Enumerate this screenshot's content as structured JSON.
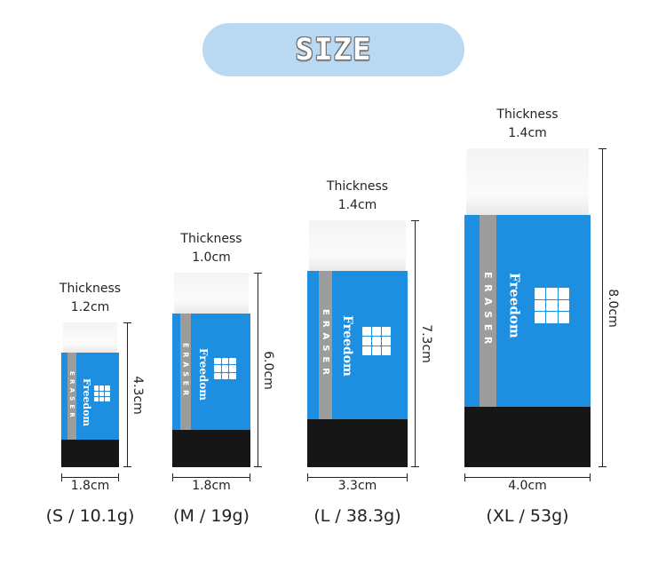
{
  "title": "SIZE",
  "brand": "Freedom",
  "stripe_text": "ERASER",
  "colors": {
    "title_pill": "#b9d8f2",
    "sleeve": "#1e8fe0",
    "stripe": "#9c9c9c",
    "base": "#161616"
  },
  "thickness_label": "Thickness",
  "erasers": [
    {
      "thickness": "1.2cm",
      "height": "4.3cm",
      "width": "1.8cm",
      "model": "(S / 10.1g)"
    },
    {
      "thickness": "1.0cm",
      "height": "6.0cm",
      "width": "1.8cm",
      "model": "(M / 19g)"
    },
    {
      "thickness": "1.4cm",
      "height": "7.3cm",
      "width": "3.3cm",
      "model": "(L / 38.3g)"
    },
    {
      "thickness": "1.4cm",
      "height": "8.0cm",
      "width": "4.0cm",
      "model": "(XL / 53g)"
    }
  ]
}
